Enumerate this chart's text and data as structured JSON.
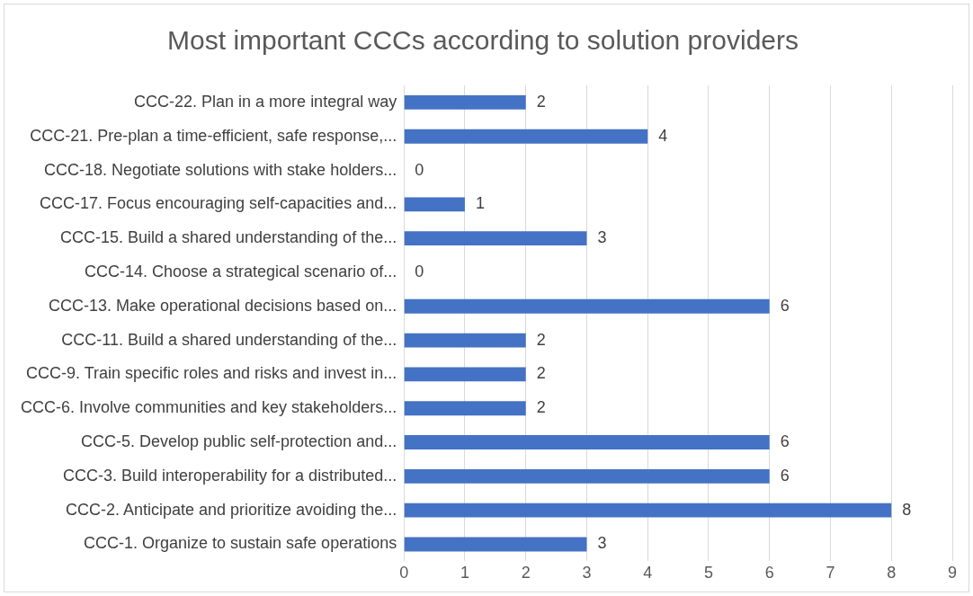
{
  "chart_data": {
    "type": "bar",
    "orientation": "horizontal",
    "title": "Most important CCCs according to solution providers",
    "categories": [
      "CCC-22. Plan in a more integral way",
      "CCC-21. Pre-plan a time-efficient, safe response,...",
      "CCC-18. Negotiate solutions with stake holders...",
      "CCC-17. Focus encouraging self-capacities and...",
      "CCC-15. Build a shared understanding of the...",
      "CCC-14. Choose a strategical scenario of...",
      "CCC-13. Make operational decisions based on...",
      "CCC-11. Build a shared understanding of the...",
      "CCC-9. Train specific roles and risks and invest in...",
      "CCC-6. Involve communities and key stakeholders...",
      "CCC-5. Develop public self-protection and...",
      "CCC-3. Build interoperability for a distributed...",
      "CCC-2. Anticipate and prioritize avoiding the...",
      "CCC-1. Organize to sustain safe operations"
    ],
    "values": [
      2,
      4,
      0,
      1,
      3,
      0,
      6,
      2,
      2,
      2,
      6,
      6,
      8,
      3
    ],
    "color": "#4472c4",
    "xlim": [
      0,
      9
    ],
    "xticks": [
      0,
      1,
      2,
      3,
      4,
      5,
      6,
      7,
      8,
      9
    ],
    "grid": "x",
    "data_labels": true
  }
}
